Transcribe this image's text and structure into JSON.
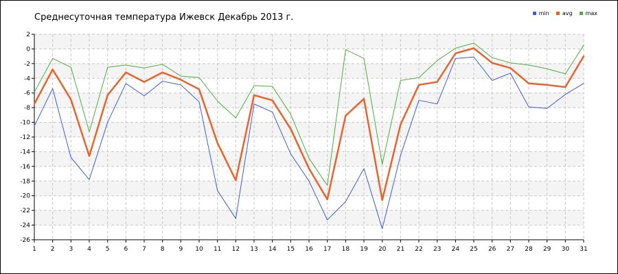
{
  "chart_data": {
    "type": "line",
    "title": "Среднесуточная температура Ижевск  Декабрь 2013 г.",
    "x": [
      1,
      2,
      3,
      4,
      5,
      6,
      7,
      8,
      9,
      10,
      11,
      12,
      13,
      14,
      15,
      16,
      17,
      18,
      19,
      20,
      21,
      22,
      23,
      24,
      25,
      26,
      27,
      28,
      29,
      30,
      31
    ],
    "ylim": [
      -26,
      2
    ],
    "yticks": [
      2,
      0,
      -2,
      -4,
      -6,
      -8,
      -10,
      -12,
      -14,
      -16,
      -18,
      -20,
      -22,
      -24,
      -26
    ],
    "ytick_labels": [
      "2",
      "0",
      "-2",
      "-4",
      "-6",
      "-8",
      "-10",
      "-12",
      "-14",
      "-16",
      "-18",
      "-20",
      "-22",
      "-24",
      "-26"
    ],
    "xtick_labels": [
      "1",
      "2",
      "3",
      "4",
      "5",
      "6",
      "7",
      "8",
      "9",
      "10",
      "11",
      "12",
      "13",
      "14",
      "15",
      "16",
      "17",
      "18",
      "19",
      "20",
      "21",
      "22",
      "23",
      "24",
      "25",
      "26",
      "27",
      "28",
      "29",
      "30",
      "31"
    ],
    "grid": true,
    "legend_position": "top-right",
    "series": [
      {
        "name": "min",
        "color": "#3b5bdb",
        "width": 1,
        "values": [
          -10.5,
          -5.4,
          -14.8,
          -17.8,
          -10.0,
          -4.7,
          -6.4,
          -4.4,
          -4.9,
          -7.2,
          -19.3,
          -23.1,
          -7.5,
          -8.6,
          -14.3,
          -18.0,
          -23.3,
          -20.8,
          -16.3,
          -24.5,
          -14.5,
          -7.0,
          -7.5,
          -1.3,
          -1.1,
          -4.3,
          -3.3,
          -7.9,
          -8.1,
          -6.2,
          -4.7
        ]
      },
      {
        "name": "avg",
        "color": "#e8632c",
        "width": 2.5,
        "values": [
          -7.5,
          -2.8,
          -6.9,
          -14.6,
          -6.3,
          -3.2,
          -4.5,
          -3.2,
          -4.2,
          -5.5,
          -12.8,
          -17.9,
          -6.3,
          -7.0,
          -10.9,
          -16.3,
          -20.5,
          -9.1,
          -6.8,
          -20.6,
          -10.3,
          -4.9,
          -4.5,
          -0.6,
          0.1,
          -1.9,
          -2.6,
          -4.7,
          -4.9,
          -5.2,
          -1.0
        ]
      },
      {
        "name": "max",
        "color": "#4caf3d",
        "width": 1,
        "values": [
          -5.9,
          -1.3,
          -2.5,
          -11.3,
          -2.5,
          -2.2,
          -2.6,
          -2.1,
          -3.7,
          -3.9,
          -7.1,
          -9.4,
          -5.0,
          -5.1,
          -8.9,
          -14.9,
          -18.6,
          -0.1,
          -1.3,
          -15.7,
          -4.3,
          -3.9,
          -1.6,
          0.1,
          0.8,
          -1.2,
          -1.9,
          -2.2,
          -2.7,
          -3.4,
          0.5
        ]
      }
    ]
  }
}
